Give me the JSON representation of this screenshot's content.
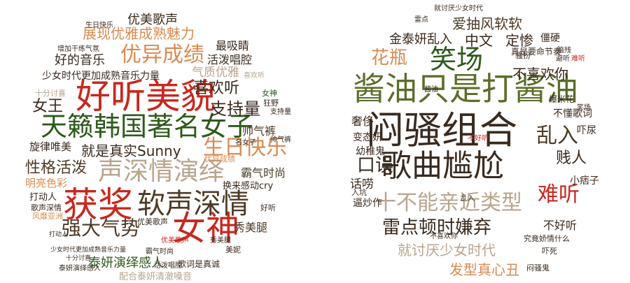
{
  "palette": {
    "red": "#c8281e",
    "green": "#2e5a1c",
    "brown": "#4d3a24",
    "orange": "#d98a52",
    "tan": "#b9a48c",
    "olive": "#5c6e2a",
    "dark": "#3a2a1e"
  },
  "left_cloud": {
    "words": [
      {
        "text": "好听美貌",
        "c": "red"
      },
      {
        "text": "获奖",
        "c": "red"
      },
      {
        "text": "女神",
        "c": "red"
      },
      {
        "text": "软声深情",
        "c": "brown"
      },
      {
        "text": "天籁韩国著名女子",
        "c": "green"
      },
      {
        "text": "声深情演绎",
        "c": "tan"
      },
      {
        "text": "优异成绩",
        "c": "orange"
      },
      {
        "text": "生日快乐",
        "c": "orange"
      },
      {
        "text": "强大气势",
        "c": "brown"
      },
      {
        "text": "性格活泼",
        "c": "brown"
      },
      {
        "text": "就是真实Sunny",
        "c": "dark"
      },
      {
        "text": "展现优雅成熟魅力",
        "c": "orange"
      },
      {
        "text": "支持量",
        "c": "dark"
      },
      {
        "text": "喜欢听",
        "c": "dark"
      },
      {
        "text": "优美歌声",
        "c": "dark"
      },
      {
        "text": "好的音乐",
        "c": "dark"
      },
      {
        "text": "少女时代更加成熟音乐力量",
        "c": "dark"
      },
      {
        "text": "气质优雅",
        "c": "tan"
      },
      {
        "text": "女王",
        "c": "dark"
      },
      {
        "text": "最吸睛",
        "c": "dark"
      },
      {
        "text": "活泼唱腔",
        "c": "dark"
      },
      {
        "text": "霸气时尚",
        "c": "brown"
      },
      {
        "text": "帅气裤",
        "c": "brown"
      },
      {
        "text": "泰妍演绎感人",
        "c": "green"
      },
      {
        "text": "旋律唯美",
        "c": "dark"
      },
      {
        "text": "明亮色彩",
        "c": "orange"
      },
      {
        "text": "换来感动cry",
        "c": "dark"
      },
      {
        "text": "秀美腿",
        "c": "brown"
      },
      {
        "text": "打动人",
        "c": "dark"
      },
      {
        "text": "歌词是真诚",
        "c": "dark"
      },
      {
        "text": "配合泰妍清澈嗓音",
        "c": "tan"
      },
      {
        "text": "十分讨喜",
        "c": "tan"
      },
      {
        "text": "生日快乐",
        "c": "dark"
      },
      {
        "text": "增加干练气氛",
        "c": "dark"
      },
      {
        "text": "女神",
        "c": "green"
      },
      {
        "text": "狂野",
        "c": "dark"
      },
      {
        "text": "优异成绩",
        "c": "orange"
      },
      {
        "text": "美妮",
        "c": "dark"
      },
      {
        "text": "好听",
        "c": "dark"
      },
      {
        "text": "优美歌声",
        "c": "dark"
      },
      {
        "text": "歌声深情",
        "c": "dark"
      },
      {
        "text": "风靡亚洲",
        "c": "orange"
      },
      {
        "text": "支持量",
        "c": "dark"
      },
      {
        "text": "少女时代更加成熟音乐力量",
        "c": "dark"
      },
      {
        "text": "十分讨喜",
        "c": "dark"
      },
      {
        "text": "喜欢听",
        "c": "tan"
      },
      {
        "text": "帅气裤",
        "c": "dark"
      },
      {
        "text": "秀美腿",
        "c": "dark"
      },
      {
        "text": "优美歌声",
        "c": "red"
      },
      {
        "text": "活泼唱腔",
        "c": "dark"
      },
      {
        "text": "名女子",
        "c": "dark"
      },
      {
        "text": "霸气时尚",
        "c": "dark"
      },
      {
        "text": "泰妍演绎感人",
        "c": "dark"
      },
      {
        "text": "打动人",
        "c": "dark"
      }
    ]
  },
  "right_cloud": {
    "words": [
      {
        "text": "闷骚组合",
        "c": "dark"
      },
      {
        "text": "歌曲尴尬",
        "c": "dark"
      },
      {
        "text": "酱油只是打酱油",
        "c": "olive"
      },
      {
        "text": "笑场",
        "c": "green"
      },
      {
        "text": "十不能亲近类型",
        "c": "tan"
      },
      {
        "text": "雷点顿时嫌弃",
        "c": "dark"
      },
      {
        "text": "难听",
        "c": "red"
      },
      {
        "text": "乱入",
        "c": "brown"
      },
      {
        "text": "花瓶",
        "c": "orange"
      },
      {
        "text": "口误",
        "c": "dark"
      },
      {
        "text": "贱人",
        "c": "dark"
      },
      {
        "text": "爱抽风软软",
        "c": "brown"
      },
      {
        "text": "中文",
        "c": "dark"
      },
      {
        "text": "定惨",
        "c": "dark"
      },
      {
        "text": "金泰妍乱入",
        "c": "dark"
      },
      {
        "text": "不喜欢你",
        "c": "dark"
      },
      {
        "text": "就讨厌少女时代",
        "c": "tan"
      },
      {
        "text": "发型真心丑",
        "c": "orange"
      },
      {
        "text": "话唠",
        "c": "dark"
      },
      {
        "text": "奢侈",
        "c": "dark"
      },
      {
        "text": "幼稚鬼",
        "c": "dark"
      },
      {
        "text": "变态妍",
        "c": "dark"
      },
      {
        "text": "逼炒作",
        "c": "dark"
      },
      {
        "text": "小痞子",
        "c": "dark"
      },
      {
        "text": "不好听",
        "c": "dark"
      },
      {
        "text": "吓尿",
        "c": "dark"
      },
      {
        "text": "不懂歌词",
        "c": "dark"
      },
      {
        "text": "爆米花",
        "c": "dark"
      },
      {
        "text": "究竟娇情什么",
        "c": "dark"
      },
      {
        "text": "真是要命节奏",
        "c": "dark"
      },
      {
        "text": "僵硬",
        "c": "dark"
      },
      {
        "text": "骚扮",
        "c": "dark"
      },
      {
        "text": "雷点",
        "c": "dark"
      },
      {
        "text": "就讨厌少女时代",
        "c": "dark"
      },
      {
        "text": "闷骚鬼",
        "c": "dark"
      },
      {
        "text": "吓死",
        "c": "dark"
      },
      {
        "text": "入坑",
        "c": "dark"
      },
      {
        "text": "乱入",
        "c": "dark"
      },
      {
        "text": "笑场",
        "c": "dark"
      },
      {
        "text": "酱油",
        "c": "dark"
      },
      {
        "text": "不好听",
        "c": "red"
      },
      {
        "text": "难听",
        "c": "red"
      },
      {
        "text": "脑残",
        "c": "dark"
      },
      {
        "text": "避听",
        "c": "dark"
      },
      {
        "text": "不喜欢你",
        "c": "dark"
      }
    ]
  }
}
